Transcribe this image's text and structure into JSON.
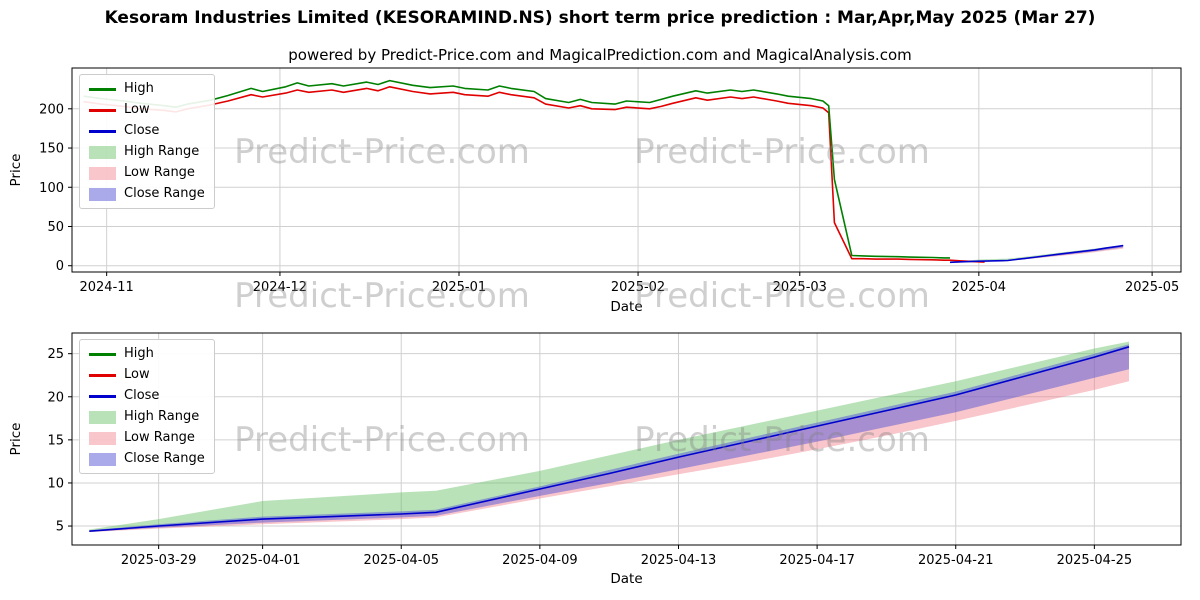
{
  "title": "Kesoram Industries Limited (KESORAMIND.NS) short term price prediction : Mar,Apr,May 2025 (Mar 27)",
  "subtitle": "powered by Predict-Price.com and MagicalPrediction.com and MagicalAnalysis.com",
  "watermark": {
    "text": "Predict-Price.com"
  },
  "colors": {
    "high": "#008000",
    "low": "#e00000",
    "close": "#0000cd",
    "high_range": "rgba(100,190,100,0.45)",
    "low_range": "rgba(240,128,140,0.45)",
    "close_range": "rgba(85,85,215,0.50)",
    "grid": "#d0d0d0",
    "spine": "#000000"
  },
  "legend_items": [
    {
      "label": "High",
      "type": "line",
      "color_key": "high"
    },
    {
      "label": "Low",
      "type": "line",
      "color_key": "low"
    },
    {
      "label": "Close",
      "type": "line",
      "color_key": "close"
    },
    {
      "label": "High Range",
      "type": "patch",
      "color_key": "high_range"
    },
    {
      "label": "Low Range",
      "type": "patch",
      "color_key": "low_range"
    },
    {
      "label": "Close Range",
      "type": "patch",
      "color_key": "close_range"
    }
  ],
  "chart_data": [
    {
      "type": "line",
      "title": "",
      "xlabel": "Date",
      "ylabel": "Price",
      "grid": true,
      "legend_position": "upper left",
      "x_domain": [
        "2024-10-26",
        "2025-05-06"
      ],
      "y_domain": [
        -8,
        252
      ],
      "x_ticks": [
        {
          "date": "2024-11-01",
          "label": "2024-11"
        },
        {
          "date": "2024-12-01",
          "label": "2024-12"
        },
        {
          "date": "2025-01-01",
          "label": "2025-01"
        },
        {
          "date": "2025-02-01",
          "label": "2025-02"
        },
        {
          "date": "2025-03-01",
          "label": "2025-03"
        },
        {
          "date": "2025-04-01",
          "label": "2025-04"
        },
        {
          "date": "2025-05-01",
          "label": "2025-05"
        }
      ],
      "y_ticks": [
        0,
        50,
        100,
        150,
        200
      ],
      "bands": [
        {
          "name": "high_range",
          "color_key": "high_range",
          "dates": [
            "2025-03-27",
            "2025-03-29",
            "2025-04-01",
            "2025-04-03",
            "2025-04-05",
            "2025-04-06",
            "2025-04-09",
            "2025-04-11",
            "2025-04-13",
            "2025-04-15",
            "2025-04-17",
            "2025-04-19",
            "2025-04-21",
            "2025-04-23",
            "2025-04-25",
            "2025-04-26"
          ],
          "upper": [
            4.6,
            5.8,
            7.9,
            8.4,
            8.9,
            9.1,
            11.4,
            13.2,
            15.0,
            16.7,
            18.4,
            20.1,
            21.8,
            23.7,
            25.6,
            26.4
          ],
          "lower": [
            4.4,
            5.0,
            5.8,
            6.1,
            6.4,
            6.6,
            9.3,
            11.1,
            13.0,
            14.8,
            16.6,
            18.4,
            20.2,
            22.4,
            24.6,
            25.8
          ]
        },
        {
          "name": "low_range",
          "color_key": "low_range",
          "dates": [
            "2025-03-27",
            "2025-03-29",
            "2025-04-01",
            "2025-04-03",
            "2025-04-05",
            "2025-04-06",
            "2025-04-09",
            "2025-04-11",
            "2025-04-13",
            "2025-04-15",
            "2025-04-17",
            "2025-04-19",
            "2025-04-21",
            "2025-04-23",
            "2025-04-25",
            "2025-04-26"
          ],
          "upper": [
            4.4,
            5.0,
            5.8,
            6.1,
            6.4,
            6.6,
            9.3,
            11.1,
            13.0,
            14.8,
            16.6,
            18.4,
            20.2,
            22.4,
            24.6,
            25.8
          ],
          "lower": [
            4.3,
            4.7,
            5.2,
            5.5,
            5.8,
            6.0,
            8.2,
            9.6,
            11.0,
            12.4,
            13.9,
            15.5,
            17.2,
            19.0,
            20.8,
            21.8
          ]
        },
        {
          "name": "close_range",
          "color_key": "close_range",
          "dates": [
            "2025-03-27",
            "2025-03-29",
            "2025-04-01",
            "2025-04-03",
            "2025-04-05",
            "2025-04-06",
            "2025-04-09",
            "2025-04-11",
            "2025-04-13",
            "2025-04-15",
            "2025-04-17",
            "2025-04-19",
            "2025-04-21",
            "2025-04-23",
            "2025-04-25",
            "2025-04-26"
          ],
          "upper": [
            4.5,
            5.2,
            6.1,
            6.4,
            6.7,
            6.9,
            9.6,
            11.5,
            13.4,
            15.2,
            17.0,
            18.8,
            20.6,
            22.8,
            25.0,
            26.1
          ],
          "lower": [
            4.35,
            4.8,
            5.4,
            5.7,
            6.0,
            6.2,
            8.5,
            10.0,
            11.6,
            13.2,
            14.8,
            16.5,
            18.2,
            20.2,
            22.2,
            23.2
          ]
        }
      ],
      "series": [
        {
          "name": "low",
          "color_key": "low",
          "dates": [
            "2024-10-28",
            "2024-10-31",
            "2024-11-04",
            "2024-11-07",
            "2024-11-11",
            "2024-11-13",
            "2024-11-15",
            "2024-11-19",
            "2024-11-22",
            "2024-11-26",
            "2024-11-28",
            "2024-12-02",
            "2024-12-04",
            "2024-12-06",
            "2024-12-10",
            "2024-12-12",
            "2024-12-16",
            "2024-12-18",
            "2024-12-20",
            "2024-12-24",
            "2024-12-27",
            "2024-12-31",
            "2025-01-02",
            "2025-01-06",
            "2025-01-08",
            "2025-01-10",
            "2025-01-14",
            "2025-01-16",
            "2025-01-20",
            "2025-01-22",
            "2025-01-24",
            "2025-01-28",
            "2025-01-30",
            "2025-02-03",
            "2025-02-05",
            "2025-02-07",
            "2025-02-11",
            "2025-02-13",
            "2025-02-17",
            "2025-02-19",
            "2025-02-21",
            "2025-02-25",
            "2025-02-27",
            "2025-03-03",
            "2025-03-05",
            "2025-03-06",
            "2025-03-07",
            "2025-03-10",
            "2025-03-12",
            "2025-03-14",
            "2025-03-18",
            "2025-03-20",
            "2025-03-24",
            "2025-03-26",
            "2025-03-27",
            "2025-03-29",
            "2025-04-01",
            "2025-04-02"
          ],
          "values": [
            209,
            206,
            203,
            200,
            198,
            196,
            200,
            205,
            210,
            218,
            215,
            220,
            224,
            221,
            224,
            221,
            226,
            223,
            228,
            222,
            219,
            221,
            218,
            216,
            221,
            218,
            214,
            206,
            201,
            204,
            200,
            199,
            202,
            200,
            203,
            207,
            214,
            211,
            215,
            213,
            215,
            210,
            207,
            204,
            201,
            195,
            55,
            9,
            9,
            8.5,
            8.5,
            8,
            7.5,
            7,
            7,
            6.2,
            5.0,
            4.6
          ]
        },
        {
          "name": "high",
          "color_key": "high",
          "dates": [
            "2024-10-28",
            "2024-10-31",
            "2024-11-04",
            "2024-11-07",
            "2024-11-11",
            "2024-11-13",
            "2024-11-15",
            "2024-11-19",
            "2024-11-22",
            "2024-11-26",
            "2024-11-28",
            "2024-12-02",
            "2024-12-04",
            "2024-12-06",
            "2024-12-10",
            "2024-12-12",
            "2024-12-16",
            "2024-12-18",
            "2024-12-20",
            "2024-12-24",
            "2024-12-27",
            "2024-12-31",
            "2025-01-02",
            "2025-01-06",
            "2025-01-08",
            "2025-01-10",
            "2025-01-14",
            "2025-01-16",
            "2025-01-20",
            "2025-01-22",
            "2025-01-24",
            "2025-01-28",
            "2025-01-30",
            "2025-02-03",
            "2025-02-05",
            "2025-02-07",
            "2025-02-11",
            "2025-02-13",
            "2025-02-17",
            "2025-02-19",
            "2025-02-21",
            "2025-02-25",
            "2025-02-27",
            "2025-03-03",
            "2025-03-05",
            "2025-03-06",
            "2025-03-07",
            "2025-03-10",
            "2025-03-12",
            "2025-03-14",
            "2025-03-18",
            "2025-03-20",
            "2025-03-24",
            "2025-03-26",
            "2025-03-27"
          ],
          "values": [
            216,
            213,
            210,
            207,
            204,
            202,
            206,
            211,
            217,
            226,
            222,
            228,
            233,
            229,
            232,
            229,
            234,
            231,
            236,
            230,
            227,
            229,
            226,
            224,
            229,
            226,
            222,
            213,
            208,
            212,
            208,
            206,
            210,
            208,
            212,
            216,
            223,
            220,
            224,
            222,
            224,
            219,
            216,
            213,
            210,
            204,
            110,
            13,
            12.5,
            12,
            11.5,
            11,
            10.5,
            10,
            10
          ]
        },
        {
          "name": "close",
          "color_key": "close",
          "dates": [
            "2025-03-27",
            "2025-03-29",
            "2025-04-01",
            "2025-04-03",
            "2025-04-05",
            "2025-04-06",
            "2025-04-09",
            "2025-04-11",
            "2025-04-13",
            "2025-04-15",
            "2025-04-17",
            "2025-04-19",
            "2025-04-21",
            "2025-04-23",
            "2025-04-25",
            "2025-04-26"
          ],
          "values": [
            4.4,
            5.0,
            5.8,
            6.1,
            6.4,
            6.6,
            9.3,
            11.1,
            13.0,
            14.8,
            16.6,
            18.4,
            20.2,
            22.4,
            24.6,
            25.8
          ]
        }
      ]
    },
    {
      "type": "line",
      "title": "",
      "xlabel": "Date",
      "ylabel": "Price",
      "grid": true,
      "legend_position": "upper left",
      "x_domain": [
        "2025-03-26T12:00:00",
        "2025-04-27T12:00:00"
      ],
      "y_domain": [
        2.8,
        27.4
      ],
      "x_ticks": [
        {
          "date": "2025-03-29",
          "label": "2025-03-29"
        },
        {
          "date": "2025-04-01",
          "label": "2025-04-01"
        },
        {
          "date": "2025-04-05",
          "label": "2025-04-05"
        },
        {
          "date": "2025-04-09",
          "label": "2025-04-09"
        },
        {
          "date": "2025-04-13",
          "label": "2025-04-13"
        },
        {
          "date": "2025-04-17",
          "label": "2025-04-17"
        },
        {
          "date": "2025-04-21",
          "label": "2025-04-21"
        },
        {
          "date": "2025-04-25",
          "label": "2025-04-25"
        }
      ],
      "y_ticks": [
        5,
        10,
        15,
        20,
        25
      ],
      "bands": [
        {
          "name": "high_range",
          "color_key": "high_range",
          "dates": [
            "2025-03-27",
            "2025-03-29",
            "2025-04-01",
            "2025-04-03",
            "2025-04-05",
            "2025-04-06",
            "2025-04-09",
            "2025-04-11",
            "2025-04-13",
            "2025-04-15",
            "2025-04-17",
            "2025-04-19",
            "2025-04-21",
            "2025-04-23",
            "2025-04-25",
            "2025-04-26"
          ],
          "upper": [
            4.6,
            5.8,
            7.9,
            8.4,
            8.9,
            9.1,
            11.4,
            13.2,
            15.0,
            16.7,
            18.4,
            20.1,
            21.8,
            23.7,
            25.6,
            26.4
          ],
          "lower": [
            4.4,
            5.0,
            5.8,
            6.1,
            6.4,
            6.6,
            9.3,
            11.1,
            13.0,
            14.8,
            16.6,
            18.4,
            20.2,
            22.4,
            24.6,
            25.8
          ]
        },
        {
          "name": "low_range",
          "color_key": "low_range",
          "dates": [
            "2025-03-27",
            "2025-03-29",
            "2025-04-01",
            "2025-04-03",
            "2025-04-05",
            "2025-04-06",
            "2025-04-09",
            "2025-04-11",
            "2025-04-13",
            "2025-04-15",
            "2025-04-17",
            "2025-04-19",
            "2025-04-21",
            "2025-04-23",
            "2025-04-25",
            "2025-04-26"
          ],
          "upper": [
            4.4,
            5.0,
            5.8,
            6.1,
            6.4,
            6.6,
            9.3,
            11.1,
            13.0,
            14.8,
            16.6,
            18.4,
            20.2,
            22.4,
            24.6,
            25.8
          ],
          "lower": [
            4.3,
            4.7,
            5.2,
            5.5,
            5.8,
            6.0,
            8.2,
            9.6,
            11.0,
            12.4,
            13.9,
            15.5,
            17.2,
            19.0,
            20.8,
            21.8
          ]
        },
        {
          "name": "close_range",
          "color_key": "close_range",
          "dates": [
            "2025-03-27",
            "2025-03-29",
            "2025-04-01",
            "2025-04-03",
            "2025-04-05",
            "2025-04-06",
            "2025-04-09",
            "2025-04-11",
            "2025-04-13",
            "2025-04-15",
            "2025-04-17",
            "2025-04-19",
            "2025-04-21",
            "2025-04-23",
            "2025-04-25",
            "2025-04-26"
          ],
          "upper": [
            4.5,
            5.2,
            6.1,
            6.4,
            6.7,
            6.9,
            9.6,
            11.5,
            13.4,
            15.2,
            17.0,
            18.8,
            20.6,
            22.8,
            25.0,
            26.1
          ],
          "lower": [
            4.35,
            4.8,
            5.4,
            5.7,
            6.0,
            6.2,
            8.5,
            10.0,
            11.6,
            13.2,
            14.8,
            16.5,
            18.2,
            20.2,
            22.2,
            23.2
          ]
        }
      ],
      "series": [
        {
          "name": "close",
          "color_key": "close",
          "dates": [
            "2025-03-27",
            "2025-03-29",
            "2025-04-01",
            "2025-04-03",
            "2025-04-05",
            "2025-04-06",
            "2025-04-09",
            "2025-04-11",
            "2025-04-13",
            "2025-04-15",
            "2025-04-17",
            "2025-04-19",
            "2025-04-21",
            "2025-04-23",
            "2025-04-25",
            "2025-04-26"
          ],
          "values": [
            4.4,
            5.0,
            5.8,
            6.1,
            6.4,
            6.6,
            9.3,
            11.1,
            13.0,
            14.8,
            16.6,
            18.4,
            20.2,
            22.4,
            24.6,
            25.8
          ]
        }
      ]
    }
  ]
}
